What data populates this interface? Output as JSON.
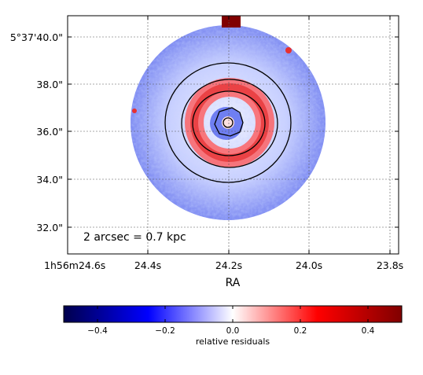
{
  "chart_data": {
    "type": "heatmap",
    "title": "",
    "xlabel": "RA",
    "ylabel": "",
    "x_ticks": [
      "1h56m24.6s",
      "24.4s",
      "24.2s",
      "24.0s",
      "23.8s"
    ],
    "y_ticks": [
      "5°37'40.0\"",
      "38.0\"",
      "36.0\"",
      "34.0\"",
      "32.0\""
    ],
    "grid": true,
    "annotation": "2 arcsec = 0.7 kpc",
    "colorbar": {
      "label": "relative residuals",
      "range": [
        -0.5,
        0.5
      ],
      "ticks": [
        "−0.4",
        "−0.2",
        "0.0",
        "0.2",
        "0.4"
      ],
      "tick_values": [
        -0.4,
        -0.2,
        0.0,
        0.2,
        0.4
      ],
      "colormap": "seismic",
      "orientation": "horizontal",
      "colors": {
        "low": "#00004c",
        "mid": "#ffffff",
        "high": "#800000"
      }
    },
    "contour_count": 4
  }
}
